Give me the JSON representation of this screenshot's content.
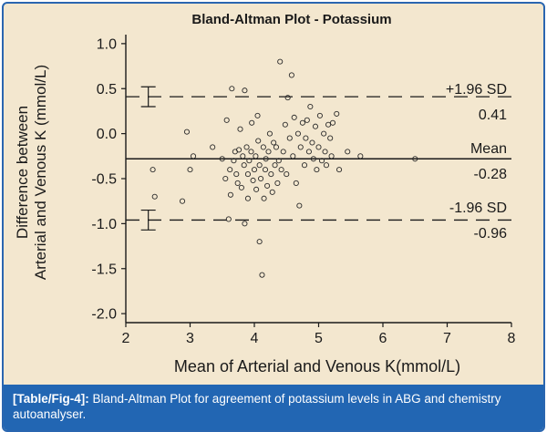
{
  "chart_data": {
    "type": "scatter",
    "title": "Bland-Altman Plot - Potassium",
    "xlabel": "Mean of Arterial and Venous K(mmol/L)",
    "ylabel_line1": "Difference between",
    "ylabel_line2": "Arterial and Venous K (mmol/L)",
    "xlim": [
      2,
      8
    ],
    "ylim": [
      -2.1,
      1.1
    ],
    "x_ticks": [
      2,
      3,
      4,
      5,
      6,
      7,
      8
    ],
    "y_ticks": [
      1.0,
      0.5,
      0.0,
      -0.5,
      -1.0,
      -1.5,
      -2.0
    ],
    "y_tick_labels": [
      "1.0",
      "0.5",
      "0.0",
      "-0.5",
      "-1.0",
      "-1.5",
      "-2.0"
    ],
    "grid": false,
    "lines": {
      "mean": {
        "y": -0.28,
        "label": "Mean",
        "value_label": "-0.28"
      },
      "upper": {
        "y": 0.41,
        "label": "+1.96 SD",
        "value_label": "0.41"
      },
      "lower": {
        "y": -0.96,
        "label": "-1.96 SD",
        "value_label": "-0.96"
      }
    },
    "error_bars": [
      {
        "x": 2.35,
        "y_low": 0.3,
        "y_high": 0.52
      },
      {
        "x": 2.35,
        "y_low": -1.07,
        "y_high": -0.85
      }
    ],
    "points": [
      [
        2.42,
        -0.4
      ],
      [
        2.45,
        -0.7
      ],
      [
        2.88,
        -0.75
      ],
      [
        2.95,
        0.02
      ],
      [
        3.0,
        -0.4
      ],
      [
        3.05,
        -0.25
      ],
      [
        3.35,
        -0.15
      ],
      [
        3.5,
        -0.28
      ],
      [
        3.55,
        -0.5
      ],
      [
        3.57,
        0.15
      ],
      [
        3.6,
        -0.95
      ],
      [
        3.62,
        -0.4
      ],
      [
        3.63,
        -0.68
      ],
      [
        3.65,
        0.5
      ],
      [
        3.68,
        -0.3
      ],
      [
        3.7,
        -0.2
      ],
      [
        3.72,
        -0.45
      ],
      [
        3.74,
        -0.55
      ],
      [
        3.76,
        -0.18
      ],
      [
        3.78,
        0.05
      ],
      [
        3.8,
        -0.6
      ],
      [
        3.82,
        -0.25
      ],
      [
        3.84,
        -0.35
      ],
      [
        3.85,
        0.48
      ],
      [
        3.85,
        -1.0
      ],
      [
        3.88,
        -0.15
      ],
      [
        3.9,
        -0.45
      ],
      [
        3.9,
        -0.72
      ],
      [
        3.92,
        -0.3
      ],
      [
        3.95,
        -0.2
      ],
      [
        3.96,
        0.12
      ],
      [
        3.98,
        -0.52
      ],
      [
        4.0,
        -0.4
      ],
      [
        4.02,
        -0.25
      ],
      [
        4.03,
        -0.62
      ],
      [
        4.05,
        0.2
      ],
      [
        4.06,
        -0.08
      ],
      [
        4.08,
        -0.35
      ],
      [
        4.08,
        -1.2
      ],
      [
        4.1,
        -0.5
      ],
      [
        4.12,
        -1.57
      ],
      [
        4.14,
        -0.15
      ],
      [
        4.15,
        -0.72
      ],
      [
        4.17,
        -0.4
      ],
      [
        4.18,
        -0.28
      ],
      [
        4.2,
        -0.58
      ],
      [
        4.22,
        -0.2
      ],
      [
        4.24,
        0.0
      ],
      [
        4.26,
        -0.45
      ],
      [
        4.28,
        -0.65
      ],
      [
        4.3,
        -0.1
      ],
      [
        4.32,
        -0.35
      ],
      [
        4.34,
        -0.15
      ],
      [
        4.36,
        -0.55
      ],
      [
        4.38,
        -0.3
      ],
      [
        4.4,
        0.8
      ],
      [
        4.42,
        -0.4
      ],
      [
        4.45,
        -0.2
      ],
      [
        4.48,
        0.1
      ],
      [
        4.5,
        -0.45
      ],
      [
        4.52,
        0.4
      ],
      [
        4.55,
        -0.05
      ],
      [
        4.58,
        0.65
      ],
      [
        4.6,
        -0.25
      ],
      [
        4.62,
        0.18
      ],
      [
        4.65,
        -0.55
      ],
      [
        4.68,
        0.0
      ],
      [
        4.7,
        -0.8
      ],
      [
        4.72,
        -0.15
      ],
      [
        4.75,
        0.12
      ],
      [
        4.78,
        -0.35
      ],
      [
        4.8,
        -0.05
      ],
      [
        4.82,
        0.15
      ],
      [
        4.85,
        -0.2
      ],
      [
        4.87,
        0.3
      ],
      [
        4.9,
        -0.1
      ],
      [
        4.92,
        -0.28
      ],
      [
        4.95,
        0.08
      ],
      [
        4.97,
        -0.4
      ],
      [
        5.0,
        -0.15
      ],
      [
        5.02,
        0.2
      ],
      [
        5.05,
        -0.3
      ],
      [
        5.08,
        0.0
      ],
      [
        5.1,
        -0.2
      ],
      [
        5.12,
        -0.35
      ],
      [
        5.15,
        0.1
      ],
      [
        5.18,
        -0.05
      ],
      [
        5.2,
        -0.25
      ],
      [
        5.22,
        0.12
      ],
      [
        5.28,
        0.22
      ],
      [
        5.32,
        -0.4
      ],
      [
        5.45,
        -0.2
      ],
      [
        5.65,
        -0.25
      ],
      [
        6.5,
        -0.28
      ]
    ]
  },
  "caption": {
    "label": "[Table/Fig-4]:",
    "text": " Bland-Altman Plot for agreement of potassium levels in ABG and chemistry autoanalyser."
  },
  "colors": {
    "background": "#f3e7cf",
    "caption_bg": "#2266b3",
    "border": "#2a66b0",
    "ink": "#1a1a1a"
  }
}
